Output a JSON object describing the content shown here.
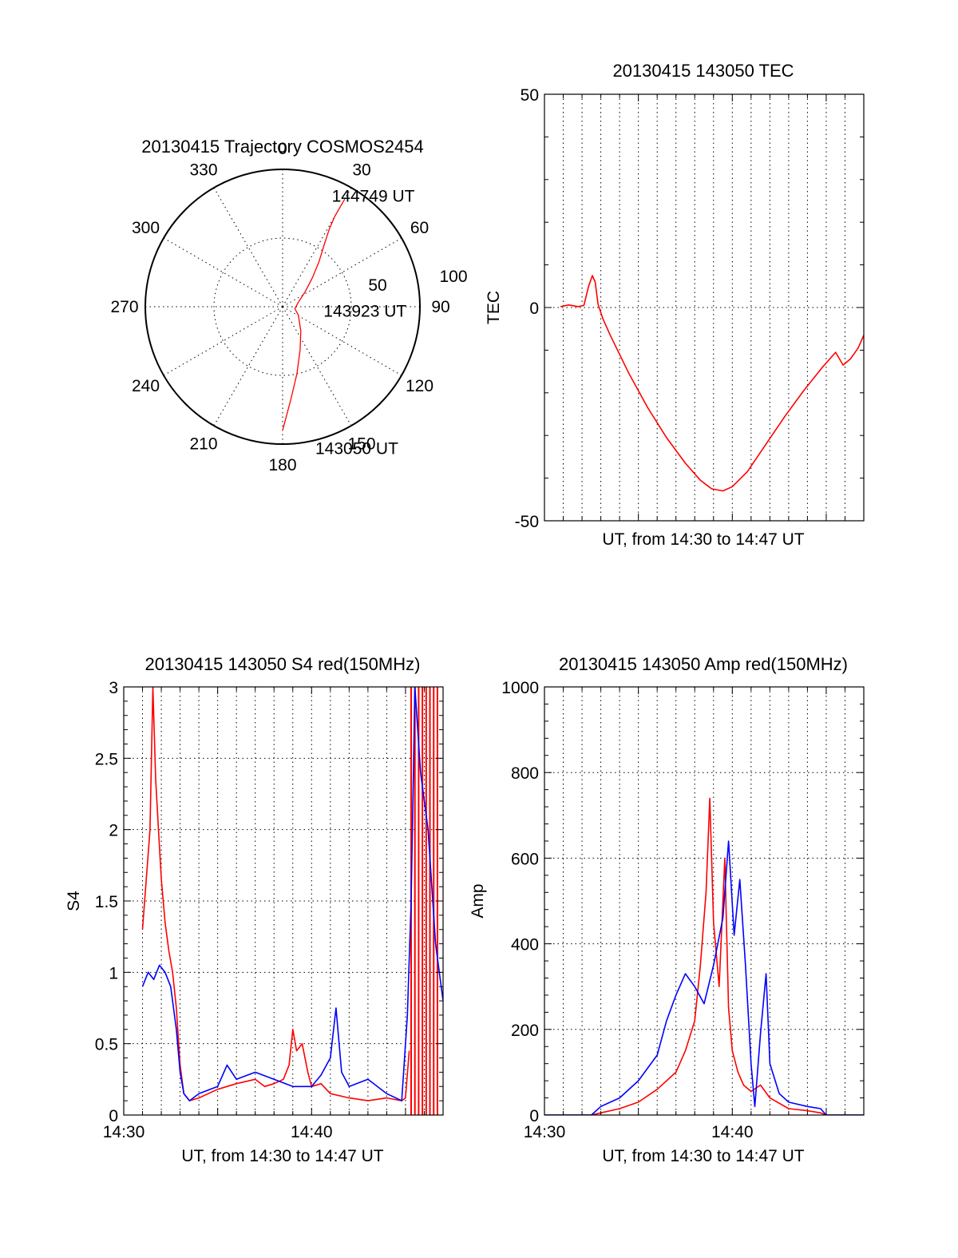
{
  "chart_data": [
    {
      "id": "polar",
      "type": "scatter",
      "title": "20130415 Trajectory COSMOS2454",
      "azimuth_labels": [
        "0",
        "30",
        "60",
        "90",
        "120",
        "150",
        "180",
        "210",
        "240",
        "270",
        "300",
        "330"
      ],
      "radius_labels": [
        "50",
        "100"
      ],
      "rlim": [
        0,
        100
      ],
      "series": [
        {
          "color": "#ff0000",
          "points": [
            [
              180,
              90
            ],
            [
              175,
              68
            ],
            [
              168,
              50
            ],
            [
              158,
              34
            ],
            [
              143,
              22
            ],
            [
              118,
              13
            ],
            [
              99,
              9
            ],
            [
              74,
              12
            ],
            [
              56,
              20
            ],
            [
              46,
              30
            ],
            [
              39,
              42
            ],
            [
              34,
              54
            ],
            [
              31,
              66
            ],
            [
              30,
              76
            ],
            [
              30,
              90
            ]
          ]
        }
      ],
      "annotations": [
        {
          "text": "144749 UT",
          "az": 24,
          "r": 88
        },
        {
          "text": "143923 UT",
          "az": 96,
          "r": 30
        },
        {
          "text": "143050 UT",
          "az": 167,
          "r": 106
        }
      ]
    },
    {
      "id": "tec",
      "type": "line",
      "title": "20130415 143050 TEC",
      "xlabel": "UT, from 14:30 to 14:47 UT",
      "ylabel": "TEC",
      "xlim": [
        0,
        17
      ],
      "ylim": [
        -50,
        50
      ],
      "yticks": [
        "50",
        "0",
        "-50"
      ],
      "grid": true,
      "series": [
        {
          "color": "#ff0000",
          "x": [
            0.85,
            1.3,
            1.8,
            2.1,
            2.35,
            2.55,
            2.7,
            2.85,
            3.1,
            3.5,
            4.5,
            5.5,
            6.5,
            7.5,
            8.3,
            8.9,
            9.5,
            10.0,
            10.8,
            11.8,
            12.8,
            13.8,
            14.8,
            15.5,
            15.9,
            16.3,
            16.7,
            17.0
          ],
          "y": [
            0.2,
            0.6,
            0.2,
            0.5,
            5.0,
            7.5,
            6.0,
            0.8,
            -2.5,
            -6.5,
            -15.5,
            -23.5,
            -30.5,
            -36.5,
            -40.5,
            -42.5,
            -43.0,
            -42.0,
            -38.5,
            -32.0,
            -25.5,
            -19.5,
            -14.0,
            -10.5,
            -13.5,
            -12.0,
            -9.5,
            -6.5
          ]
        }
      ]
    },
    {
      "id": "s4",
      "type": "line",
      "title": "20130415 143050 S4 red(150MHz)",
      "xlabel": "UT, from 14:30 to 14:47 UT",
      "ylabel": "S4",
      "xlim": [
        0,
        17
      ],
      "ylim": [
        0,
        3
      ],
      "yticks": [
        "0",
        "0.5",
        "1",
        "1.5",
        "2",
        "2.5",
        "3"
      ],
      "xticks": [
        {
          "x": 0,
          "label": "14:30"
        },
        {
          "x": 10,
          "label": "14:40"
        }
      ],
      "grid": true,
      "series": [
        {
          "color": "#ff0000",
          "x": [
            1.0,
            1.2,
            1.4,
            1.55,
            1.7,
            1.85,
            2.0,
            2.2,
            2.4,
            2.6,
            2.8,
            3.0,
            3.2,
            3.5,
            4.0,
            5.0,
            6.0,
            7.0,
            7.5,
            8.0,
            8.5,
            8.8,
            9.0,
            9.2,
            9.5,
            9.8,
            10.0,
            10.5,
            11.0,
            12.0,
            13.0,
            14.0,
            14.8,
            15.0,
            15.2
          ],
          "y": [
            1.3,
            1.65,
            2.0,
            3.0,
            2.35,
            2.0,
            1.65,
            1.35,
            1.15,
            1.0,
            0.75,
            0.35,
            0.15,
            0.1,
            0.12,
            0.18,
            0.22,
            0.25,
            0.2,
            0.22,
            0.25,
            0.35,
            0.6,
            0.45,
            0.5,
            0.3,
            0.2,
            0.22,
            0.15,
            0.12,
            0.1,
            0.12,
            0.1,
            0.12,
            0.45
          ],
          "spikes": [
            15.3,
            15.5,
            15.7,
            15.9,
            16.1,
            16.3,
            16.5,
            16.7
          ]
        },
        {
          "color": "#0000ff",
          "x": [
            1.0,
            1.3,
            1.6,
            1.9,
            2.2,
            2.5,
            2.8,
            3.0,
            3.2,
            3.5,
            4.0,
            5.0,
            5.5,
            6.0,
            7.0,
            8.0,
            9.0,
            10.0,
            10.5,
            11.0,
            11.3,
            11.6,
            12.0,
            13.0,
            14.0,
            14.8,
            15.1,
            15.3,
            15.5,
            15.8,
            16.2,
            16.6,
            17.0
          ],
          "y": [
            0.9,
            1.0,
            0.95,
            1.05,
            1.0,
            0.9,
            0.6,
            0.3,
            0.15,
            0.1,
            0.15,
            0.2,
            0.35,
            0.25,
            0.3,
            0.25,
            0.2,
            0.2,
            0.28,
            0.4,
            0.75,
            0.3,
            0.2,
            0.25,
            0.15,
            0.1,
            0.7,
            1.5,
            3.0,
            2.4,
            2.0,
            1.2,
            0.8
          ]
        }
      ]
    },
    {
      "id": "amp",
      "type": "line",
      "title": "20130415 143050 Amp red(150MHz)",
      "xlabel": "UT, from 14:30 to 14:47 UT",
      "ylabel": "Amp",
      "xlim": [
        0,
        17
      ],
      "ylim": [
        0,
        1000
      ],
      "yticks": [
        "0",
        "200",
        "400",
        "600",
        "800",
        "1000"
      ],
      "xticks": [
        {
          "x": 0,
          "label": "14:30"
        },
        {
          "x": 10,
          "label": "14:40"
        }
      ],
      "grid": true,
      "series": [
        {
          "color": "#ff0000",
          "x": [
            0.0,
            2.5,
            3.0,
            4.0,
            5.0,
            6.0,
            7.0,
            7.5,
            8.0,
            8.3,
            8.6,
            8.8,
            9.0,
            9.3,
            9.6,
            9.8,
            10.0,
            10.3,
            10.6,
            11.0,
            11.5,
            12.0,
            13.0,
            14.0,
            14.7,
            15.0,
            17.0
          ],
          "y": [
            0,
            0,
            5,
            15,
            30,
            60,
            100,
            150,
            220,
            350,
            520,
            740,
            450,
            300,
            600,
            250,
            150,
            100,
            70,
            55,
            70,
            40,
            15,
            10,
            5,
            0,
            0
          ]
        },
        {
          "color": "#0000ff",
          "x": [
            0.0,
            2.5,
            3.0,
            4.0,
            5.0,
            6.0,
            6.5,
            7.0,
            7.5,
            8.0,
            8.5,
            9.0,
            9.5,
            9.8,
            10.1,
            10.4,
            10.7,
            11.0,
            11.2,
            11.5,
            11.8,
            12.0,
            12.5,
            13.0,
            14.0,
            14.7,
            15.0,
            17.0
          ],
          "y": [
            0,
            0,
            20,
            40,
            80,
            140,
            220,
            280,
            330,
            300,
            260,
            350,
            460,
            640,
            420,
            550,
            350,
            120,
            20,
            190,
            330,
            120,
            50,
            30,
            20,
            15,
            0,
            0
          ]
        }
      ]
    }
  ]
}
